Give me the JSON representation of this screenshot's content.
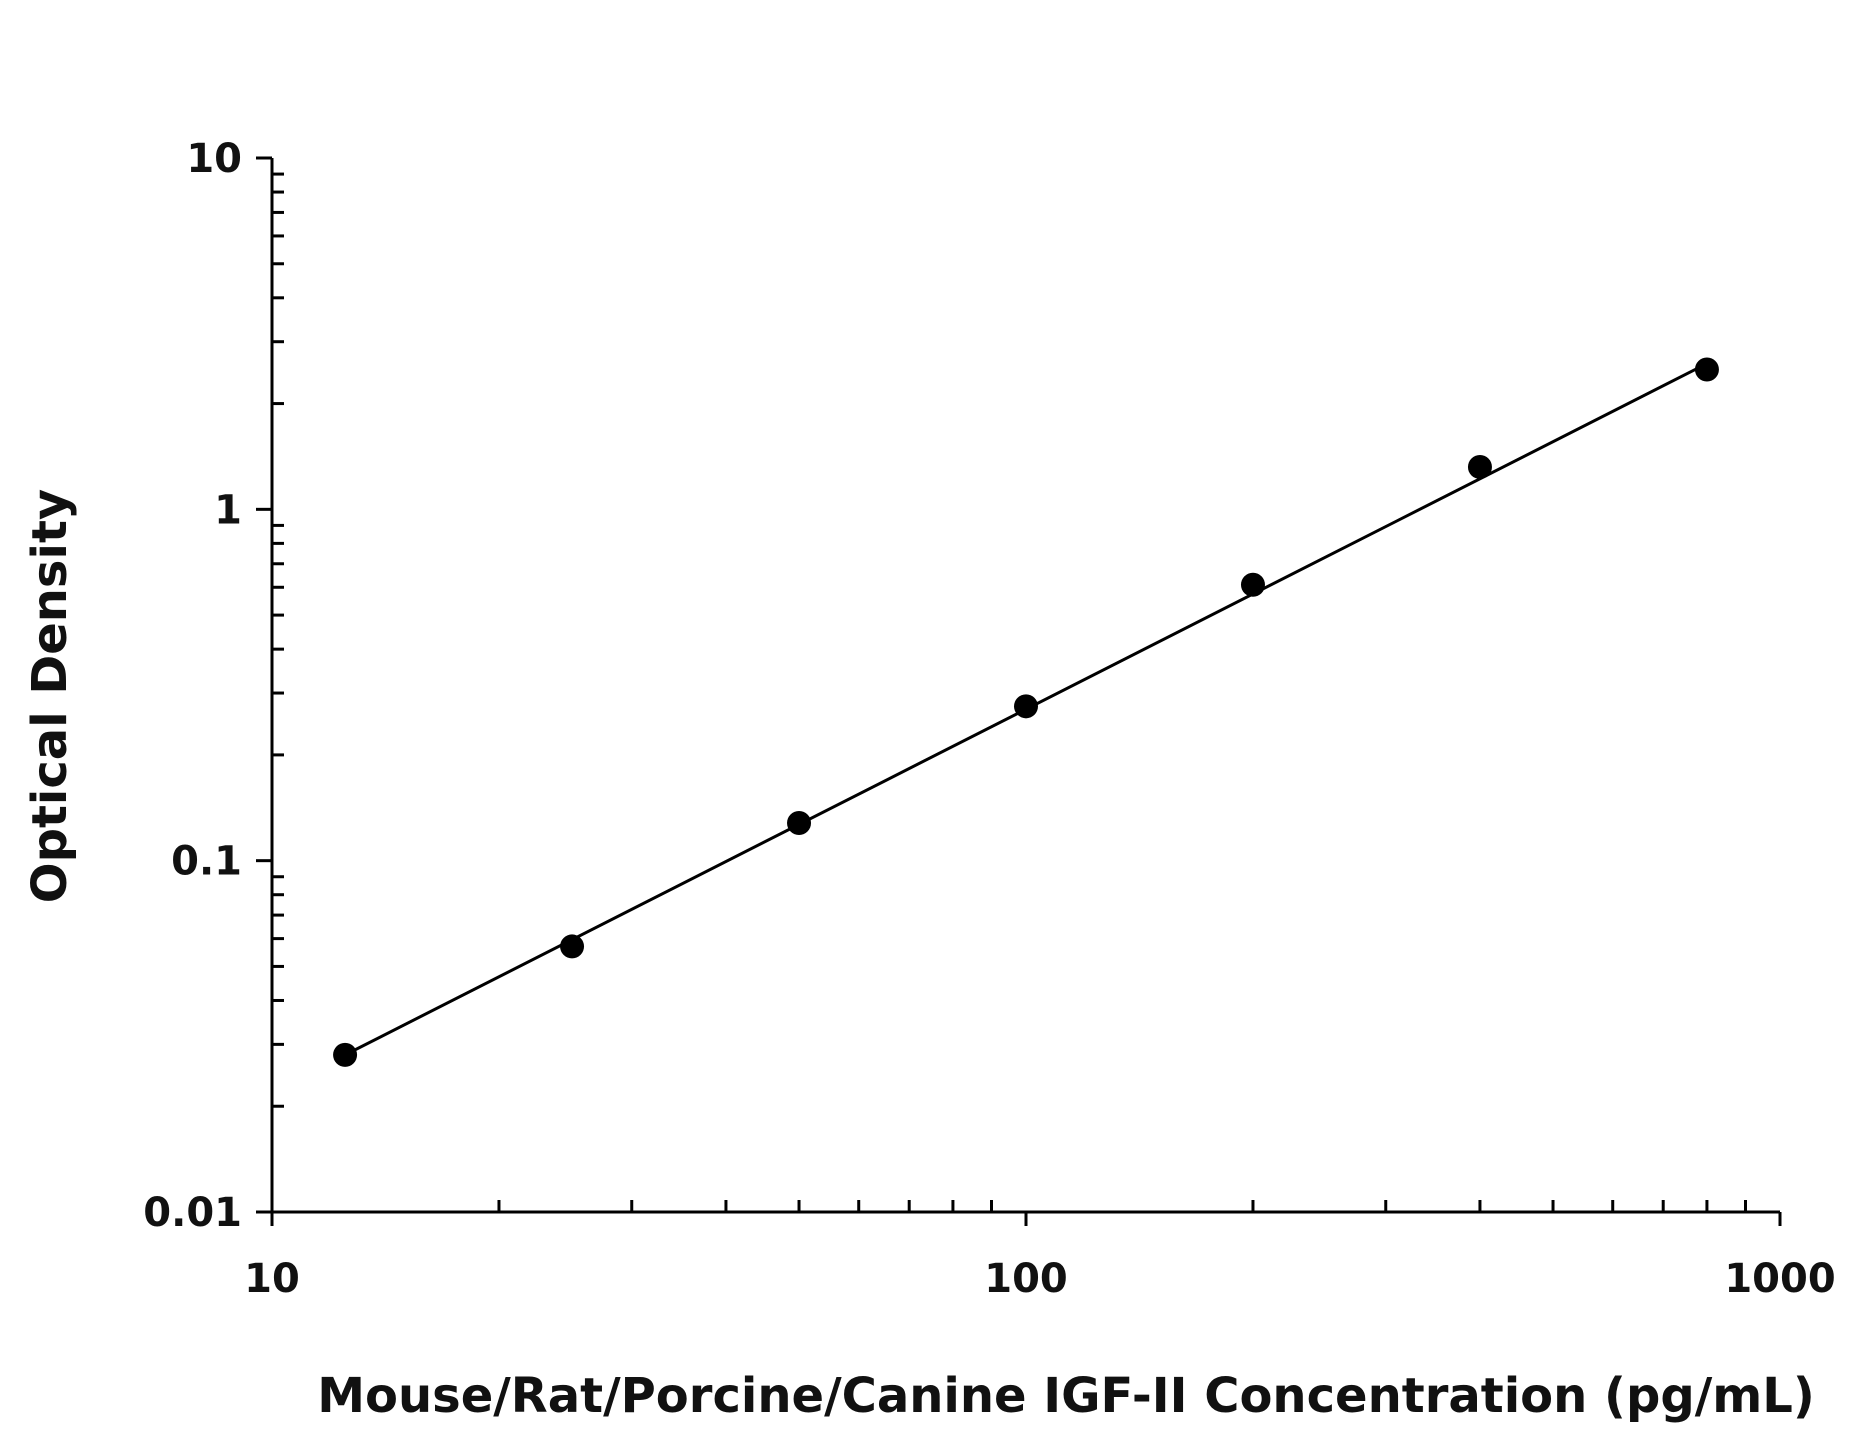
{
  "chart_data": {
    "type": "scatter",
    "title": "",
    "xlabel": "Mouse/Rat/Porcine/Canine IGF-II Concentration (pg/mL)",
    "ylabel": "Optical Density",
    "x_scale": "log",
    "y_scale": "log",
    "xlim": [
      10,
      1000
    ],
    "ylim": [
      0.01,
      10
    ],
    "x_ticks": [
      10,
      100,
      1000
    ],
    "x_tick_labels": [
      "10",
      "100",
      "1000"
    ],
    "y_ticks": [
      0.01,
      0.1,
      1,
      10
    ],
    "y_tick_labels": [
      "0.01",
      "0.1",
      "1",
      "10"
    ],
    "grid": false,
    "legend": "none",
    "colors": {
      "marker": "#000000",
      "line": "#000000",
      "axis": "#000000"
    },
    "series": [
      {
        "type": "scatter",
        "x": [
          12.5,
          25,
          50,
          100,
          200,
          400,
          800
        ],
        "y": [
          0.028,
          0.057,
          0.128,
          0.275,
          0.61,
          1.32,
          2.5
        ]
      }
    ],
    "fit_line": {
      "x": [
        12.5,
        800
      ],
      "y": [
        0.028,
        2.6
      ]
    }
  }
}
